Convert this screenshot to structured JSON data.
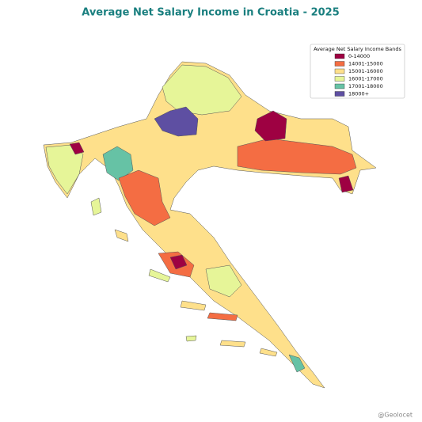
{
  "title": "Average Net Salary Income in Croatia - 2025",
  "legend": {
    "title": "Average Net Salary Income Bands",
    "items": [
      {
        "label": "0-14000",
        "color": "#9e0142"
      },
      {
        "label": "14001-15000",
        "color": "#f46d43"
      },
      {
        "label": "15001-16000",
        "color": "#fee08b"
      },
      {
        "label": "16001-17000",
        "color": "#e6f598"
      },
      {
        "label": "17001-18000",
        "color": "#66c2a5"
      },
      {
        "label": "18000+",
        "color": "#5e4fa2"
      }
    ]
  },
  "credit": "@Geolocet"
}
